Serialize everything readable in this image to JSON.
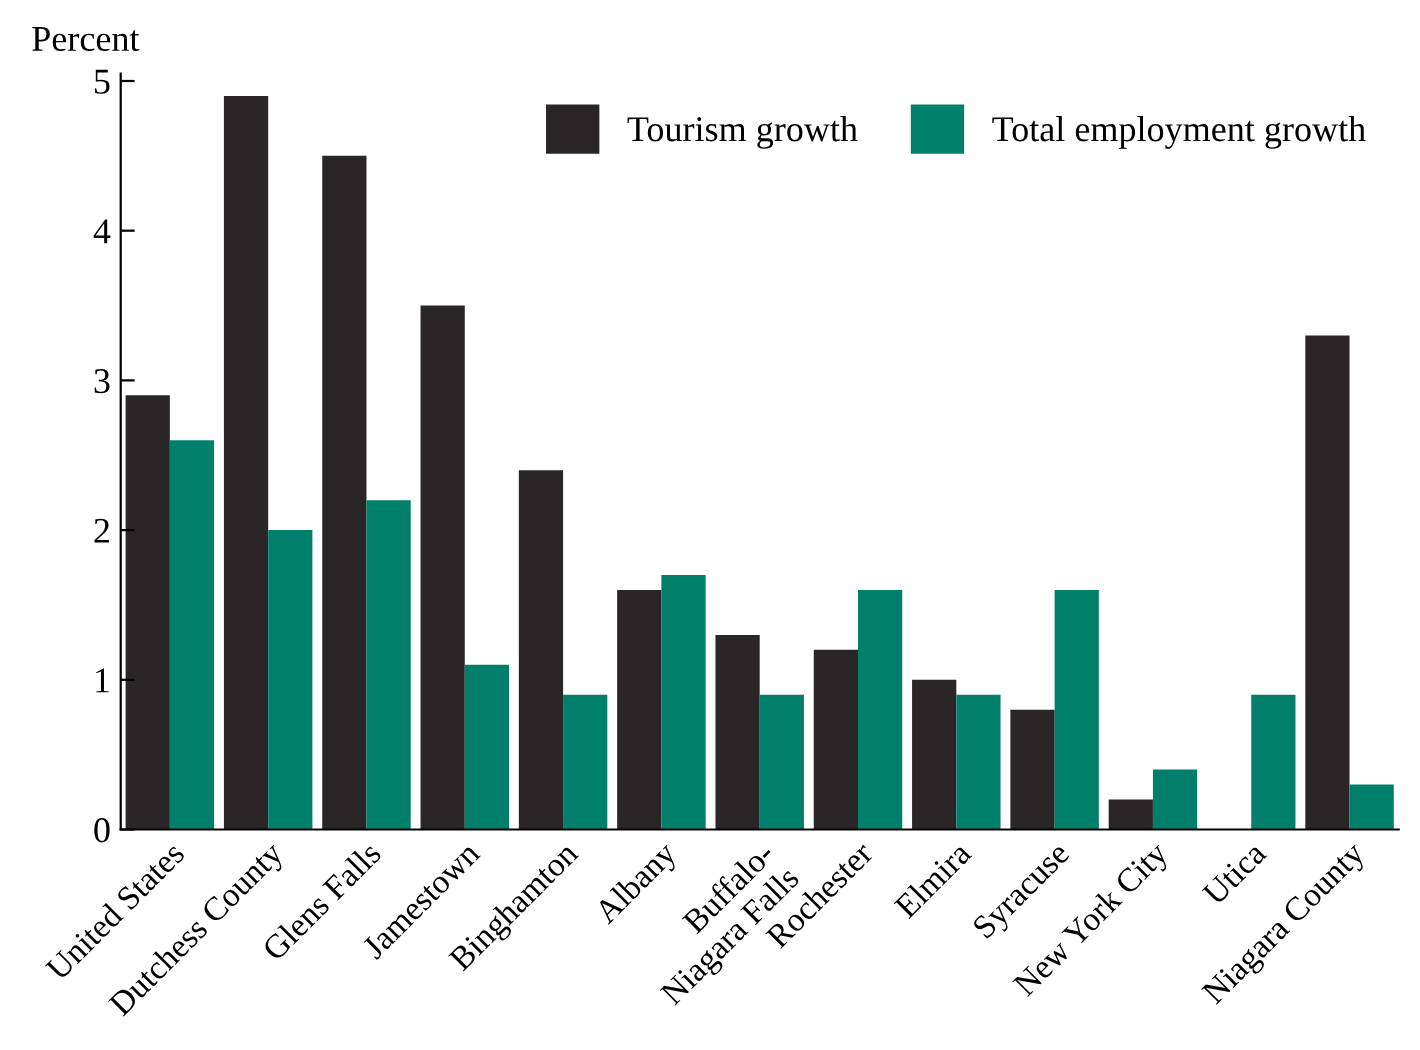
{
  "chart_data": {
    "type": "bar",
    "ylabel": "Percent",
    "categories": [
      "United States",
      "Dutchess County",
      "Glens Falls",
      "Jamestown",
      "Binghamton",
      "Albany",
      "Buffalo-\nNiagara Falls",
      "Rochester",
      "Elmira",
      "Syracuse",
      "New York City",
      "Utica",
      "Niagara County"
    ],
    "series": [
      {
        "name": "Tourism growth",
        "color": "#2a2526",
        "values": [
          2.9,
          4.9,
          4.5,
          3.5,
          2.4,
          1.6,
          1.3,
          1.2,
          1.0,
          0.8,
          0.2,
          0.0,
          3.3
        ]
      },
      {
        "name": "Total employment growth",
        "color": "#00806a",
        "values": [
          2.6,
          2.0,
          2.2,
          1.1,
          0.9,
          1.7,
          0.9,
          1.6,
          0.9,
          1.6,
          0.4,
          0.9,
          0.3
        ]
      }
    ],
    "ylim": [
      0,
      5.05
    ],
    "yticks": [
      0,
      1,
      2,
      3,
      4,
      5
    ],
    "grid": false,
    "legend": "top right"
  }
}
